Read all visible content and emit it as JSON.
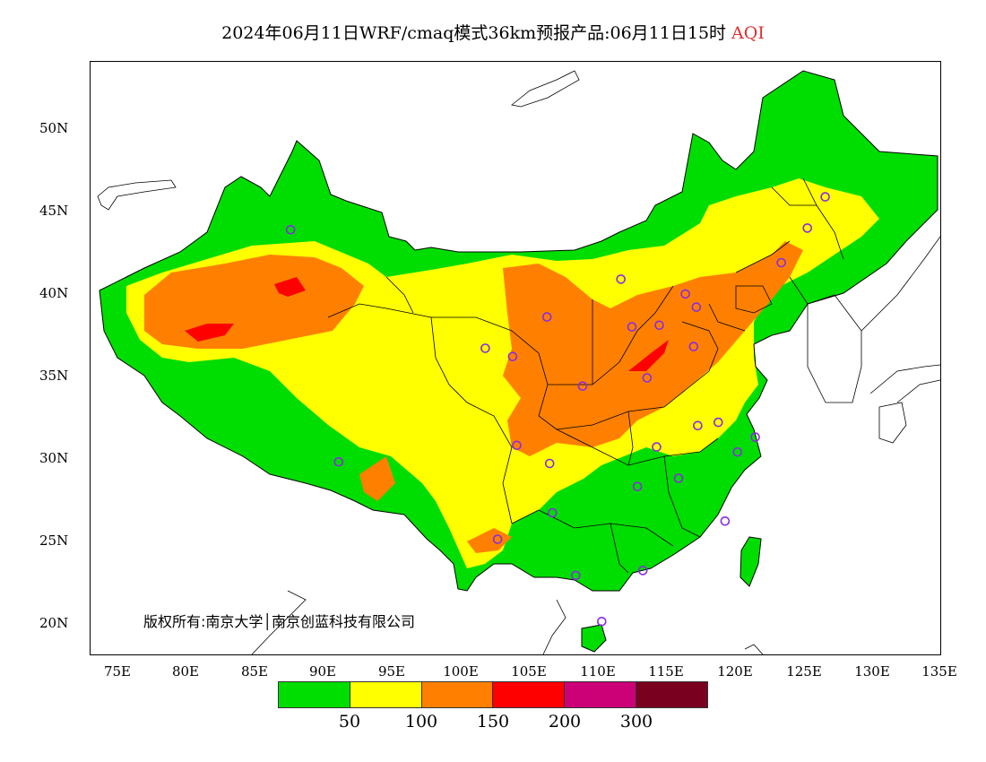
{
  "title": {
    "main": "2024年06月11日WRF/cmaq模式36km预报产品:06月11日15时",
    "variable": "AQI"
  },
  "axes": {
    "lat_labels": [
      "50N",
      "45N",
      "40N",
      "35N",
      "30N",
      "25N",
      "20N"
    ],
    "lon_labels": [
      "75E",
      "80E",
      "85E",
      "90E",
      "95E",
      "100E",
      "105E",
      "110E",
      "115E",
      "120E",
      "125E",
      "130E",
      "135E"
    ],
    "lon_range": [
      73,
      135
    ],
    "lat_range": [
      18,
      54
    ]
  },
  "copyright": "版权所有:南京大学│南京创蓝科技有限公司",
  "legend": {
    "colors": [
      "#00dd00",
      "#ffff00",
      "#ff8000",
      "#ff0000",
      "#cc0077",
      "#7a0020"
    ],
    "ticks": [
      "50",
      "100",
      "150",
      "200",
      "300"
    ]
  },
  "stations": [
    {
      "lon": 87.6,
      "lat": 43.8
    },
    {
      "lon": 91.1,
      "lat": 29.7
    },
    {
      "lon": 101.8,
      "lat": 36.6
    },
    {
      "lon": 103.8,
      "lat": 36.1
    },
    {
      "lon": 106.3,
      "lat": 38.5
    },
    {
      "lon": 104.1,
      "lat": 30.7
    },
    {
      "lon": 106.5,
      "lat": 29.6
    },
    {
      "lon": 102.7,
      "lat": 25.0
    },
    {
      "lon": 106.7,
      "lat": 26.6
    },
    {
      "lon": 108.9,
      "lat": 34.3
    },
    {
      "lon": 111.7,
      "lat": 40.8
    },
    {
      "lon": 112.5,
      "lat": 37.9
    },
    {
      "lon": 114.5,
      "lat": 38.0
    },
    {
      "lon": 116.4,
      "lat": 39.9
    },
    {
      "lon": 117.2,
      "lat": 39.1
    },
    {
      "lon": 117.0,
      "lat": 36.7
    },
    {
      "lon": 113.6,
      "lat": 34.8
    },
    {
      "lon": 114.3,
      "lat": 30.6
    },
    {
      "lon": 112.9,
      "lat": 28.2
    },
    {
      "lon": 115.9,
      "lat": 28.7
    },
    {
      "lon": 117.3,
      "lat": 31.9
    },
    {
      "lon": 118.8,
      "lat": 32.1
    },
    {
      "lon": 121.5,
      "lat": 31.2
    },
    {
      "lon": 120.2,
      "lat": 30.3
    },
    {
      "lon": 119.3,
      "lat": 26.1
    },
    {
      "lon": 113.3,
      "lat": 23.1
    },
    {
      "lon": 108.4,
      "lat": 22.8
    },
    {
      "lon": 110.3,
      "lat": 20.0
    },
    {
      "lon": 123.4,
      "lat": 41.8
    },
    {
      "lon": 125.3,
      "lat": 43.9
    },
    {
      "lon": 126.6,
      "lat": 45.8
    }
  ]
}
